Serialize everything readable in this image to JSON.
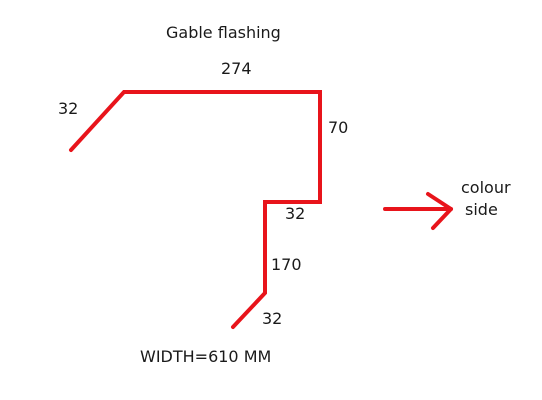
{
  "title": "Gable flashing",
  "dimensions": {
    "top_length": "274",
    "left_flange": "32",
    "right_drop": "70",
    "inner_return": "32",
    "lower_leg": "170",
    "bottom_flange": "32"
  },
  "annotation": {
    "line1": "colour",
    "line2": "side"
  },
  "width_note": "WIDTH=610 MM",
  "colors": {
    "profile_line": "#e8141b",
    "arrow": "#e8141b",
    "text": "#1a1a1a",
    "background": "#ffffff"
  }
}
